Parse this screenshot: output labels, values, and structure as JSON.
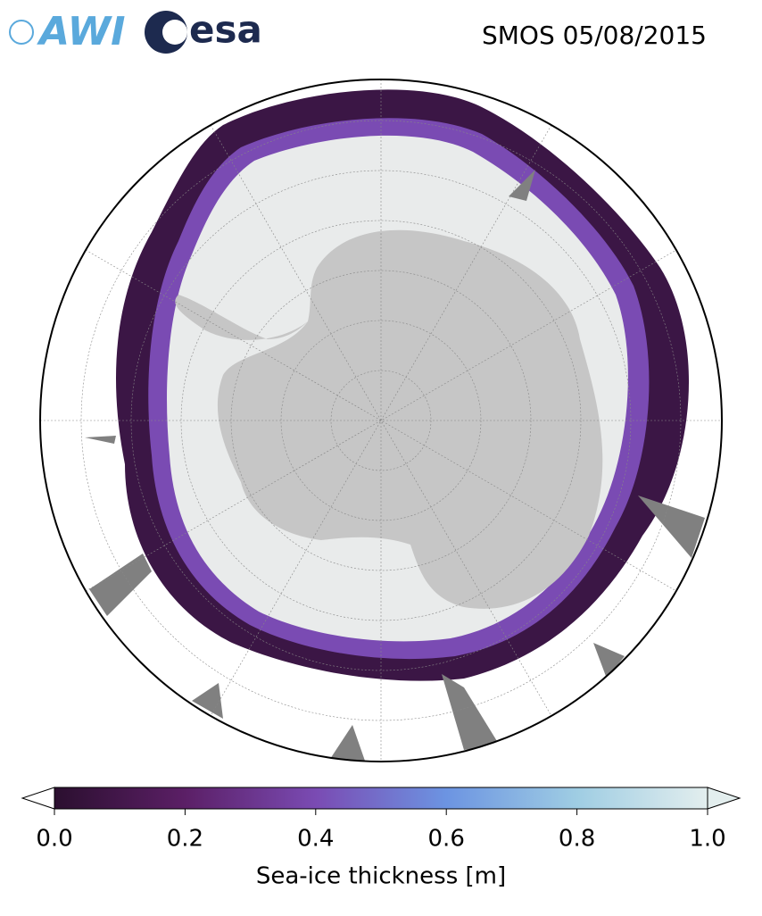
{
  "header": {
    "logos": [
      "AWI",
      "esa"
    ],
    "title": "SMOS 05/08/2015"
  },
  "colorbar": {
    "label": "Sea-ice thickness [m]",
    "lim": [
      0,
      1
    ],
    "ticks": [
      {
        "value": 0,
        "label": "0.0"
      },
      {
        "value": 0.2,
        "label": "0.2"
      },
      {
        "value": 0.4,
        "label": "0.4"
      },
      {
        "value": 0.6,
        "label": "0.6"
      },
      {
        "value": 0.8,
        "label": "0.8"
      },
      {
        "value": 1,
        "label": "1.0"
      }
    ],
    "colors": [
      "#2b0f2f",
      "#5b1f66",
      "#7a4bb3",
      "#6c94e2",
      "#9fcde3",
      "#e3eeee"
    ]
  }
}
